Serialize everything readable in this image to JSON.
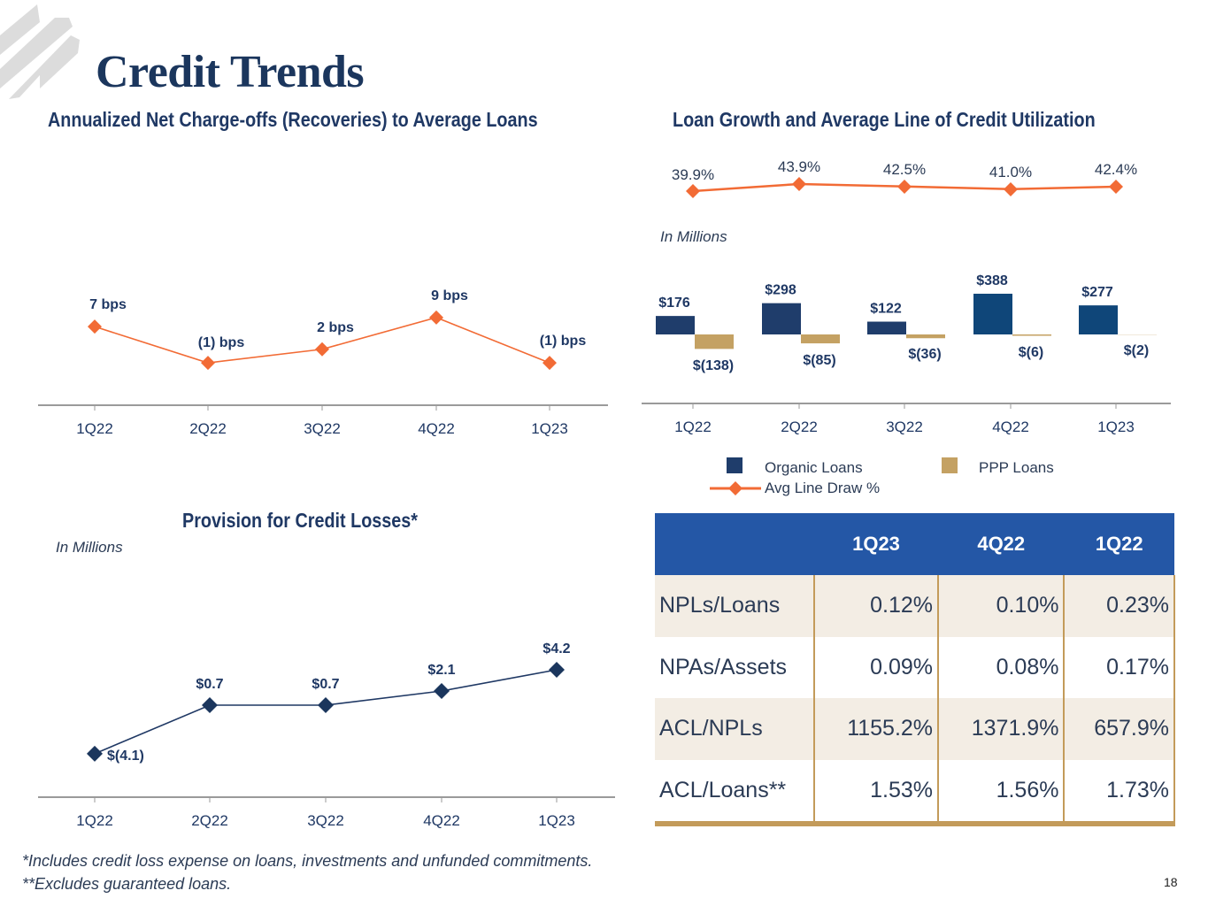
{
  "page": {
    "title": "Credit Trends",
    "page_number": "18",
    "logo_icon": "stripes-logo-icon"
  },
  "colors": {
    "navy": "#1f3864",
    "organic_bar": "#1f3d6b",
    "ppp_bar": "#c4a163",
    "orange": "#f26b35",
    "table_header": "#2457a6",
    "table_shade": "#f3ede4",
    "gold_border": "#c39b5a"
  },
  "sections": {
    "nco_title": "Annualized Net Charge-offs (Recoveries) to Average Loans",
    "loan_title": "Loan Growth and Average Line of Credit Utilization",
    "loan_note": "In Millions",
    "prov_title": "Provision for Credit Losses*",
    "prov_note": "In Millions"
  },
  "chart_data": [
    {
      "id": "nco",
      "type": "line",
      "title": "Annualized Net Charge-offs (Recoveries) to Average Loans",
      "categories": [
        "1Q22",
        "2Q22",
        "3Q22",
        "4Q22",
        "1Q23"
      ],
      "values": [
        7,
        -1,
        2,
        9,
        -1
      ],
      "unit": "bps",
      "data_labels": [
        "7  bps",
        "(1) bps",
        "2 bps",
        "9  bps",
        "(1) bps"
      ],
      "xlabel": "",
      "ylabel": "",
      "grid": false
    },
    {
      "id": "loan_growth",
      "type": "bar",
      "title": "Loan Growth and Average Line of Credit Utilization",
      "categories": [
        "1Q22",
        "2Q22",
        "3Q22",
        "4Q22",
        "1Q23"
      ],
      "unit": "In Millions",
      "series": [
        {
          "name": "Organic Loans",
          "values": [
            176,
            298,
            122,
            388,
            277
          ],
          "labels": [
            "$176",
            "$298",
            "$122",
            "$388",
            "$277"
          ]
        },
        {
          "name": "PPP Loans",
          "values": [
            -138,
            -85,
            -36,
            -6,
            -2
          ],
          "labels": [
            "$(138)",
            "$(85)",
            "$(36)",
            "$(6)",
            "$(2)"
          ]
        },
        {
          "name": "Avg Line Draw %",
          "type": "line",
          "values": [
            39.9,
            43.9,
            42.5,
            41.0,
            42.4
          ],
          "labels": [
            "39.9%",
            "43.9%",
            "42.5%",
            "41.0%",
            "42.4%"
          ]
        }
      ],
      "legend": {
        "position": "bottom",
        "entries": [
          "Organic Loans",
          "PPP Loans",
          "Avg Line Draw %"
        ]
      },
      "grid": false
    },
    {
      "id": "provision",
      "type": "line",
      "title": "Provision for Credit Losses*",
      "categories": [
        "1Q22",
        "2Q22",
        "3Q22",
        "4Q22",
        "1Q23"
      ],
      "values": [
        -4.1,
        0.7,
        0.7,
        2.1,
        4.2
      ],
      "unit": "In Millions",
      "data_labels": [
        "$(4.1)",
        "$0.7",
        "$0.7",
        "$2.1",
        "$4.2"
      ],
      "grid": false
    }
  ],
  "table": {
    "headers": [
      "",
      "1Q23",
      "4Q22",
      "1Q22"
    ],
    "rows": [
      {
        "label": "NPLs/Loans",
        "values": [
          "0.12%",
          "0.10%",
          "0.23%"
        ]
      },
      {
        "label": "NPAs/Assets",
        "values": [
          "0.09%",
          "0.08%",
          "0.17%"
        ]
      },
      {
        "label": "ACL/NPLs",
        "values": [
          "1155.2%",
          "1371.9%",
          "657.9%"
        ]
      },
      {
        "label": "ACL/Loans**",
        "values": [
          "1.53%",
          "1.56%",
          "1.73%"
        ]
      }
    ]
  },
  "footnotes": [
    "*Includes credit loss expense on loans, investments and unfunded commitments.",
    "**Excludes guaranteed loans."
  ]
}
